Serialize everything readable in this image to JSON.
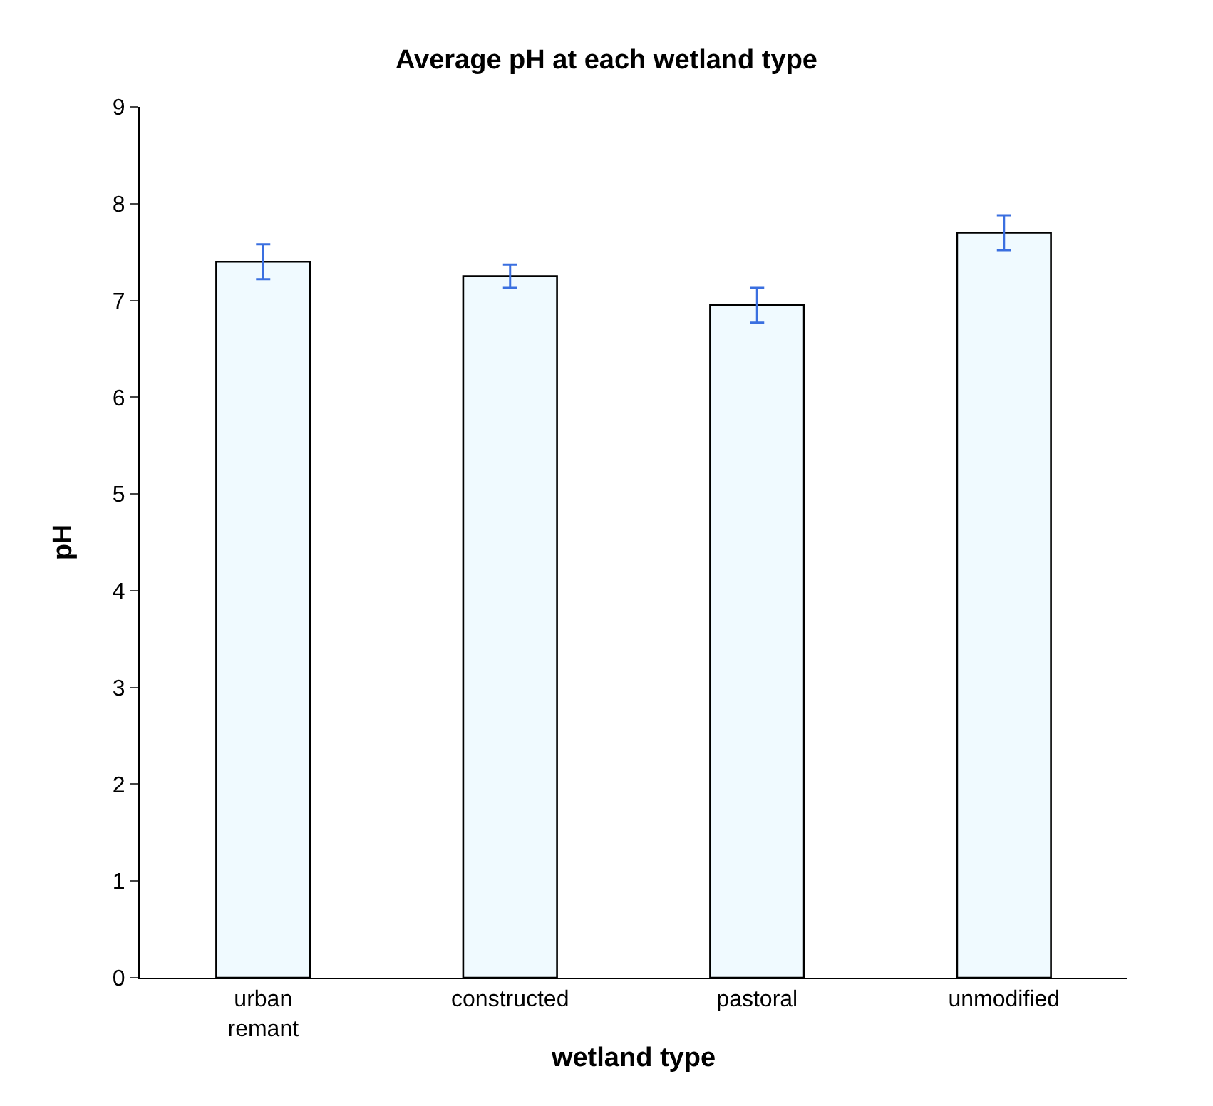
{
  "chart_data": {
    "type": "bar",
    "title": "Average pH at each wetland type",
    "xlabel": "wetland type",
    "ylabel": "pH",
    "categories": [
      "urban\nremant",
      "constructed",
      "pastoral",
      "unmodified"
    ],
    "values": [
      7.4,
      7.25,
      6.95,
      7.7
    ],
    "errors": [
      0.18,
      0.12,
      0.18,
      0.18
    ],
    "color": "#f0faff",
    "ylim": [
      0,
      9
    ],
    "yticks": [
      0,
      1,
      2,
      3,
      4,
      5,
      6,
      7,
      8,
      9
    ],
    "grid": false,
    "legend": false
  }
}
